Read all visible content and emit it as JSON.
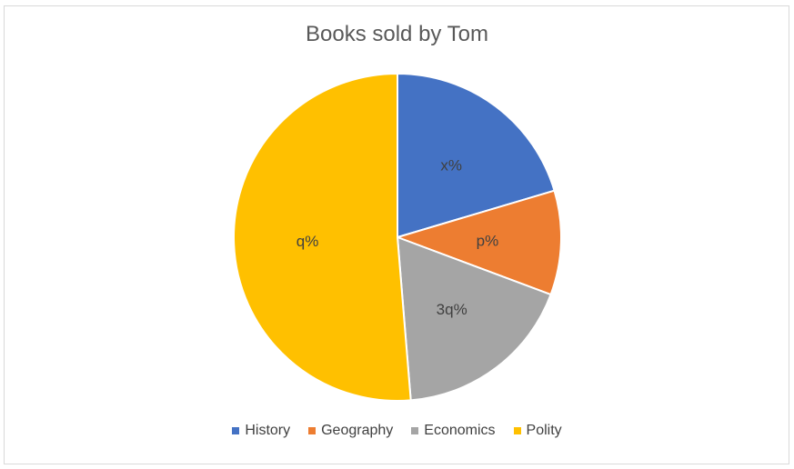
{
  "chart_data": {
    "type": "pie",
    "title": "Books sold by Tom",
    "slices": [
      {
        "label": "History",
        "value": 20.4,
        "data_label": "x%",
        "color": "#4472C4"
      },
      {
        "label": "Geography",
        "value": 10.3,
        "data_label": "p%",
        "color": "#ED7D31"
      },
      {
        "label": "Economics",
        "value": 18.0,
        "data_label": "3q%",
        "color": "#A5A5A5"
      },
      {
        "label": "Polity",
        "value": 51.3,
        "data_label": "q%",
        "color": "#FFC000"
      }
    ],
    "legend_position": "bottom"
  }
}
